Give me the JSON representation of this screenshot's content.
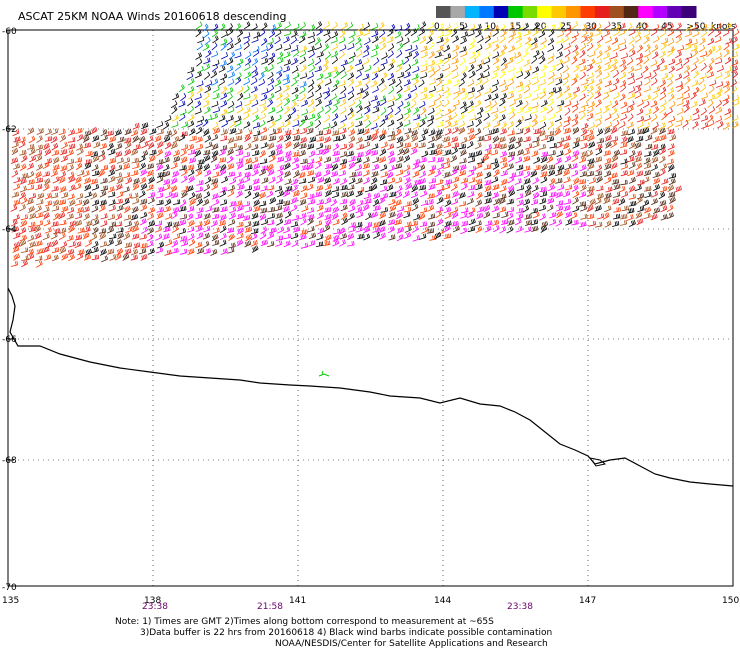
{
  "title": "ASCAT 25KM NOAA Winds 20160618 descending",
  "legend": {
    "unit_label": "knots",
    "colors": [
      "#555555",
      "#a8a8a8",
      "#00b4ff",
      "#0078ff",
      "#0000b4",
      "#00c800",
      "#78dc00",
      "#ffff00",
      "#ffc800",
      "#ff9600",
      "#ff3c00",
      "#e61e1e",
      "#a0501e",
      "#502814",
      "#ff00ff",
      "#b400ff",
      "#6400b4",
      "#3c0078"
    ],
    "labels": [
      {
        "text": "0",
        "stop": 0
      },
      {
        "text": "5",
        "stop": 1
      },
      {
        "text": "10",
        "stop": 2
      },
      {
        "text": "15",
        "stop": 3
      },
      {
        "text": "20",
        "stop": 4
      },
      {
        "text": "25",
        "stop": 5
      },
      {
        "text": "30",
        "stop": 6
      },
      {
        "text": "35",
        "stop": 7
      },
      {
        "text": "40",
        "stop": 8
      },
      {
        "text": "45",
        "stop": 9
      },
      {
        "text": ">50",
        "stop": 10
      }
    ]
  },
  "axes": {
    "lon_ticks": [
      "135",
      "138",
      "141",
      "144",
      "147",
      "150"
    ],
    "lat_ticks": [
      "-60",
      "-62",
      "-64",
      "-66",
      "-68",
      "-70"
    ],
    "lon_range": [
      135,
      150
    ],
    "lat_range": [
      -60,
      -70
    ]
  },
  "times": [
    {
      "text": "23:38",
      "lon": 138
    },
    {
      "text": "21:58",
      "lon": 139.5
    },
    {
      "text": "23:38",
      "lon": 146
    }
  ],
  "notes": {
    "line1": "Note: 1) Times are GMT 2)Times along bottom correspond to measurement at ~65S",
    "line2": "3)Data buffer is 22 hrs from 20160618 4) Black wind barbs indicate possible contamination",
    "line3": "NOAA/NESDIS/Center for Satellite Applications and Research"
  }
}
